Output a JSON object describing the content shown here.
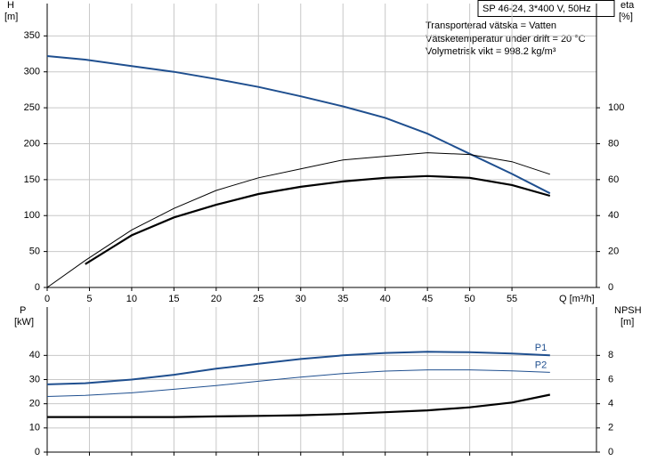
{
  "chart_data": [
    {
      "type": "line",
      "title": "SP 46-24, 3*400 V, 50Hz",
      "annotations": [
        "Transporterad vätska = Vatten",
        "Vätsketemperatur under drift = 20 °C",
        "Volymetrisk vikt = 998.2 kg/m³"
      ],
      "xlabel": "Q [m³/h]",
      "ylabel": [
        "H",
        "[m]"
      ],
      "y2label": [
        "eta",
        "[%]"
      ],
      "x": [
        0,
        4.5,
        10,
        15,
        20,
        25,
        30,
        35,
        40,
        45,
        50,
        55,
        59.5
      ],
      "xlim": [
        0,
        65
      ],
      "xticks": [
        0,
        5,
        10,
        15,
        20,
        25,
        30,
        35,
        40,
        45,
        50,
        55
      ],
      "ylim": [
        0,
        395
      ],
      "yticks": [
        0,
        50,
        100,
        150,
        200,
        250,
        300,
        350
      ],
      "y2lim": [
        0,
        158
      ],
      "y2ticks": [
        0,
        20,
        40,
        60,
        80,
        100
      ],
      "grid": true,
      "series": [
        {
          "color": "#1f4f8f",
          "width": 2,
          "values": [
            322,
            317,
            308,
            300,
            290,
            279,
            266,
            252,
            236,
            214,
            186,
            158,
            131
          ]
        },
        {
          "color": "#000000",
          "width": 1,
          "axis": "y2",
          "values": [
            0,
            15,
            32,
            44,
            54,
            61,
            66,
            71,
            73,
            75,
            74,
            70,
            63
          ]
        },
        {
          "color": "#000000",
          "width": 2.2,
          "axis": "y2",
          "values": [
            null,
            13,
            29,
            39,
            46,
            52,
            56,
            59,
            61,
            62,
            61,
            57,
            51
          ]
        }
      ]
    },
    {
      "type": "line",
      "ylabel": [
        "P",
        "[kW]"
      ],
      "y2label": [
        "NPSH",
        "[m]"
      ],
      "x": [
        0,
        4.5,
        10,
        15,
        20,
        25,
        30,
        35,
        40,
        45,
        50,
        55,
        59.5
      ],
      "xlim": [
        0,
        65
      ],
      "xticks": [
        0,
        5,
        10,
        15,
        20,
        25,
        30,
        35,
        40,
        45,
        50,
        55
      ],
      "ylim": [
        0,
        60
      ],
      "yticks": [
        0,
        10,
        20,
        30,
        40
      ],
      "y2lim": [
        0,
        12
      ],
      "y2ticks": [
        0,
        2,
        4,
        6,
        8
      ],
      "grid": true,
      "series": [
        {
          "name": "P1",
          "color": "#1f4f8f",
          "width": 2,
          "values": [
            28,
            28.5,
            30,
            32,
            34.5,
            36.5,
            38.5,
            40,
            41,
            41.5,
            41.3,
            40.8,
            40
          ]
        },
        {
          "name": "P2",
          "color": "#1f4f8f",
          "width": 1,
          "values": [
            23,
            23.5,
            24.5,
            26,
            27.5,
            29.3,
            31,
            32.5,
            33.5,
            34,
            34,
            33.6,
            33
          ]
        },
        {
          "color": "#000000",
          "width": 2.2,
          "axis": "y2",
          "values": [
            2.9,
            2.9,
            2.9,
            2.9,
            2.95,
            3,
            3.05,
            3.15,
            3.3,
            3.45,
            3.7,
            4.1,
            4.75
          ]
        }
      ]
    }
  ]
}
